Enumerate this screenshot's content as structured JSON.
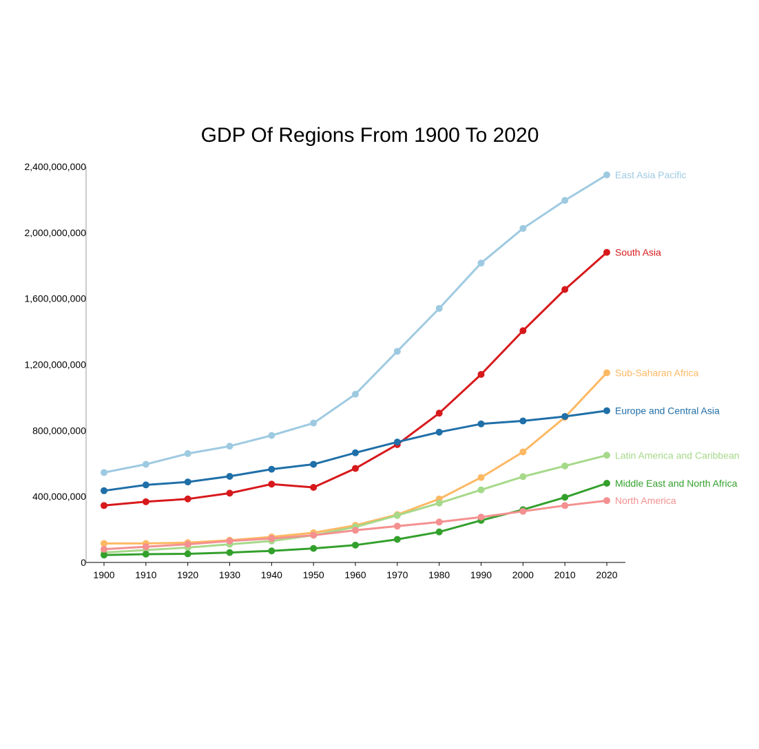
{
  "chart_data": {
    "type": "line",
    "title": "GDP Of Regions From 1900 To 2020",
    "xlabel": "",
    "ylabel": "",
    "x": [
      1900,
      1910,
      1920,
      1930,
      1940,
      1950,
      1960,
      1970,
      1980,
      1990,
      2000,
      2010,
      2020
    ],
    "ylim": [
      0,
      2400000000
    ],
    "yticks": [
      0,
      400000000,
      800000000,
      1200000000,
      1600000000,
      2000000000,
      2400000000
    ],
    "ytick_labels": [
      "0",
      "400,000,000",
      "800,000,000",
      "1,200,000,000",
      "1,600,000,000",
      "2,000,000,000",
      "2,400,000,000"
    ],
    "xtick_labels": [
      "1900",
      "1910",
      "1920",
      "1930",
      "1940",
      "1950",
      "1960",
      "1970",
      "1980",
      "1990",
      "2000",
      "2010",
      "2020"
    ],
    "grid": false,
    "legend": "inline labels at line ends",
    "series": [
      {
        "name": "East Asia Pacific",
        "color": "#9ecae1",
        "values": [
          545000000,
          595000000,
          660000000,
          705000000,
          770000000,
          845000000,
          1020000000,
          1280000000,
          1540000000,
          1815000000,
          2025000000,
          2195000000,
          2350000000
        ]
      },
      {
        "name": "South Asia",
        "color": "#d7191c",
        "values": [
          345000000,
          368000000,
          385000000,
          420000000,
          475000000,
          455000000,
          570000000,
          715000000,
          905000000,
          1140000000,
          1405000000,
          1655000000,
          1880000000
        ]
      },
      {
        "name": "Sub-Saharan Africa",
        "color": "#fdb863",
        "values": [
          115000000,
          115000000,
          120000000,
          135000000,
          155000000,
          180000000,
          225000000,
          290000000,
          385000000,
          515000000,
          670000000,
          880000000,
          1150000000
        ]
      },
      {
        "name": "Europe and Central Asia",
        "color": "#1f6fa8",
        "values": [
          435000000,
          470000000,
          488000000,
          522000000,
          565000000,
          595000000,
          665000000,
          730000000,
          790000000,
          840000000,
          858000000,
          885000000,
          920000000
        ]
      },
      {
        "name": "Latin America and Caribbean",
        "color": "#a6d98a",
        "values": [
          60000000,
          75000000,
          90000000,
          110000000,
          130000000,
          165000000,
          215000000,
          285000000,
          360000000,
          440000000,
          520000000,
          585000000,
          650000000
        ]
      },
      {
        "name": "Middle East and North Africa",
        "color": "#33a02c",
        "values": [
          45000000,
          50000000,
          52000000,
          60000000,
          70000000,
          85000000,
          105000000,
          140000000,
          185000000,
          255000000,
          320000000,
          395000000,
          480000000
        ]
      },
      {
        "name": "North America",
        "color": "#f49090",
        "values": [
          80000000,
          95000000,
          110000000,
          130000000,
          145000000,
          165000000,
          195000000,
          220000000,
          245000000,
          275000000,
          310000000,
          345000000,
          375000000
        ]
      }
    ]
  }
}
